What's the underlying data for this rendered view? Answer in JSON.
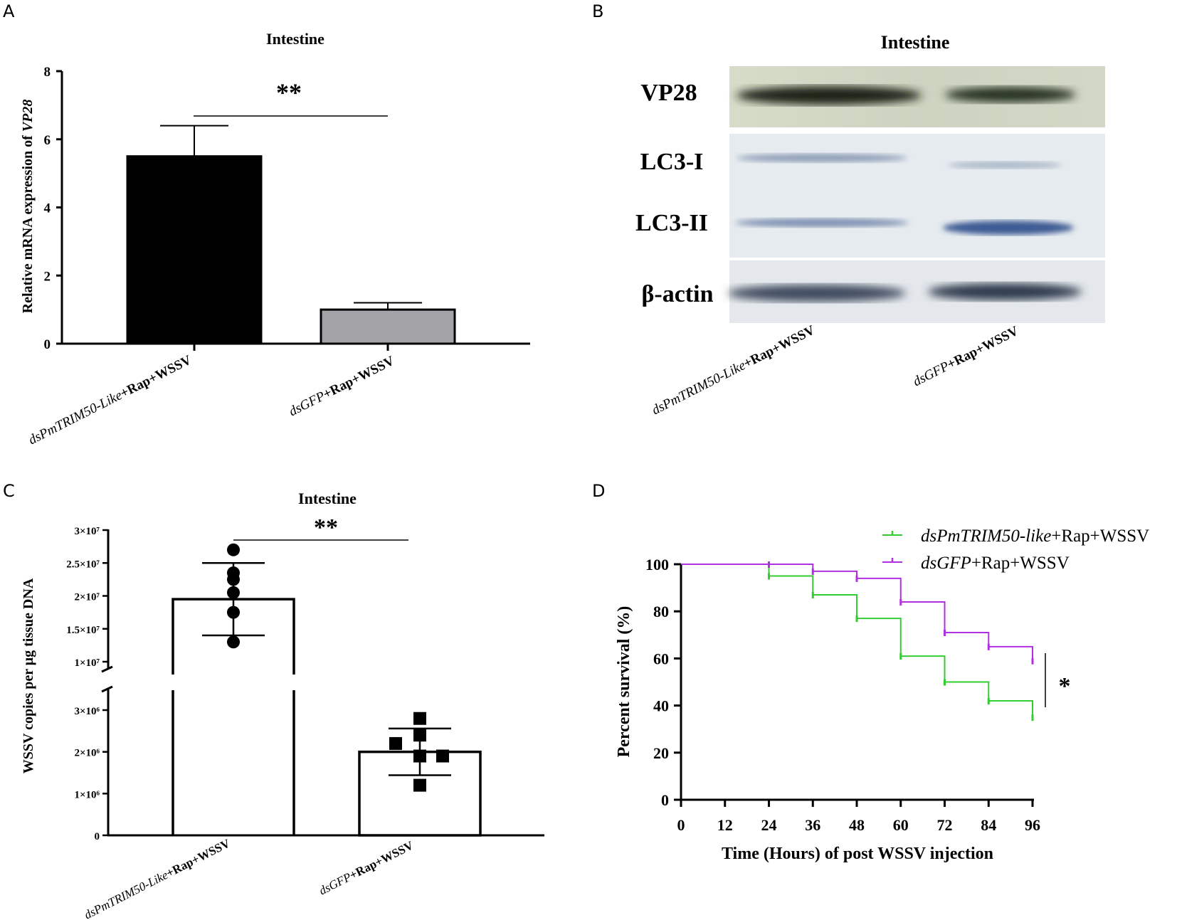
{
  "panels": {
    "A": {
      "letter": "A",
      "chart_data": {
        "type": "bar",
        "title": "Intestine",
        "ylabel_prefix": "Relative mRNA expression of ",
        "ylabel_italic": "VP28",
        "ylim": [
          0,
          8
        ],
        "yticks": [
          "0",
          "2",
          "4",
          "6",
          "8"
        ],
        "categories": [
          {
            "italic": "dsPmTRIM50-Like",
            "bold": "+Rap+WSSV"
          },
          {
            "italic": "dsGFP",
            "bold": "+Rap+WSSV"
          }
        ],
        "values": [
          5.5,
          1.0
        ],
        "errors": [
          0.9,
          0.2
        ],
        "colors": [
          "#000000",
          "#a3a3a8"
        ],
        "significance": "**"
      }
    },
    "B": {
      "letter": "B",
      "title": "Intestine",
      "bands": [
        "VP28",
        "LC3-I",
        "LC3-II",
        "β-actin"
      ],
      "lanes": [
        {
          "italic": "dsPmTRIM50-Like",
          "bold": "+Rap+WSSV"
        },
        {
          "italic": "dsGFP",
          "bold": "+Rap+WSSV"
        }
      ]
    },
    "C": {
      "letter": "C",
      "chart_data": {
        "type": "bar",
        "title": "Intestine",
        "ylabel": "WSSV copies per  μg tissue DNA",
        "yticks_upper": [
          "1×10⁷",
          "1.5×10⁷",
          "2×10⁷",
          "2.5×10⁷",
          "3×10⁷"
        ],
        "yticks_lower": [
          "0",
          "1×10⁶",
          "2×10⁶",
          "3×10⁶"
        ],
        "axis_break": true,
        "categories": [
          {
            "italic": "dsPmTRIM50-Like",
            "bold": "+Rap+WSSV"
          },
          {
            "italic": "dsGFP",
            "bold": "+Rap+WSSV"
          }
        ],
        "values": [
          19500000,
          2000000
        ],
        "errors": [
          5500000,
          560000
        ],
        "points": [
          [
            27000000,
            23500000,
            22500000,
            20500000,
            17500000,
            13000000
          ],
          [
            2800000,
            2400000,
            2200000,
            1900000,
            1900000,
            1200000
          ]
        ],
        "significance": "**"
      }
    },
    "D": {
      "letter": "D",
      "chart_data": {
        "type": "line",
        "step": true,
        "xlabel": "Time (Hours) of post WSSV injection",
        "ylabel": "Percent survival (%)",
        "xlim": [
          0,
          96
        ],
        "ylim": [
          0,
          100
        ],
        "xticks": [
          "0",
          "12",
          "24",
          "36",
          "48",
          "60",
          "72",
          "84",
          "96"
        ],
        "yticks": [
          "0",
          "20",
          "40",
          "60",
          "80",
          "100"
        ],
        "series": [
          {
            "name_italic": "dsPmTRIM50-like",
            "name_rest": "+Rap+WSSV",
            "color": "#33cc33",
            "x": [
              0,
              24,
              36,
              48,
              60,
              72,
              84,
              96
            ],
            "y": [
              100,
              95,
              87,
              77,
              61,
              50,
              42,
              35
            ]
          },
          {
            "name_italic": "dsGFP",
            "name_rest": "+Rap+WSSV",
            "color": "#b030e0",
            "x": [
              0,
              24,
              36,
              48,
              60,
              72,
              84,
              96
            ],
            "y": [
              100,
              100,
              97,
              94,
              84,
              71,
              65,
              59
            ]
          }
        ],
        "significance": "*"
      }
    }
  }
}
